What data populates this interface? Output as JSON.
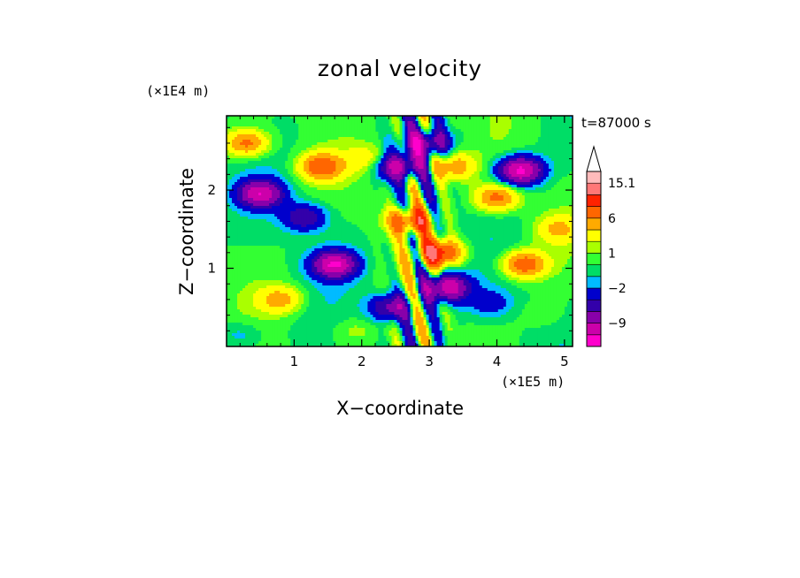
{
  "chart_data": {
    "type": "heatmap",
    "title": "zonal velocity",
    "xlabel": "X−coordinate",
    "ylabel": "Z−coordinate",
    "x_unit": "(×1E5 m)",
    "y_unit": "(×1E4 m)",
    "time_label": "t=87000 s",
    "xlim": [
      0,
      5.12
    ],
    "ylim": [
      0,
      2.95
    ],
    "x_ticks": [
      1,
      2,
      3,
      4,
      5
    ],
    "y_ticks": [
      1,
      2
    ],
    "x_tick_labels": [
      "1",
      "2",
      "3",
      "4",
      "5"
    ],
    "y_tick_labels": [
      "1",
      "2"
    ],
    "grid": false,
    "colorbar": {
      "levels": [
        -15,
        -12,
        -9,
        -6,
        -4,
        -2,
        -1,
        0,
        1,
        2,
        4,
        6,
        9,
        12,
        15.1,
        18
      ],
      "colors": [
        "#ff00cc",
        "#cc00aa",
        "#8800aa",
        "#3300aa",
        "#0000cc",
        "#00bbff",
        "#00dd66",
        "#33ff33",
        "#aaff00",
        "#ffff00",
        "#ffaa00",
        "#ff6600",
        "#ff2200",
        "#ff7777",
        "#ffbbbb"
      ],
      "labeled_values": [
        "15.1",
        "6",
        "1",
        "−2",
        "−9"
      ],
      "extend_max": true
    },
    "features": [
      {
        "x": 0.5,
        "z": 1.95,
        "u": -11
      },
      {
        "x": 1.15,
        "z": 1.65,
        "u": -6
      },
      {
        "x": 1.6,
        "z": 1.05,
        "u": -12
      },
      {
        "x": 0.3,
        "z": 2.6,
        "u": 7
      },
      {
        "x": 1.4,
        "z": 2.3,
        "u": 8
      },
      {
        "x": 0.8,
        "z": 0.6,
        "u": 5
      },
      {
        "x": 0.2,
        "z": 0.15,
        "u": -2
      },
      {
        "x": 2.55,
        "z": 2.3,
        "u": -10
      },
      {
        "x": 2.7,
        "z": 1.6,
        "u": 9
      },
      {
        "x": 2.95,
        "z": 2.6,
        "u": -9
      },
      {
        "x": 3.15,
        "z": 1.2,
        "u": 11
      },
      {
        "x": 3.25,
        "z": 0.75,
        "u": -12
      },
      {
        "x": 2.45,
        "z": 0.5,
        "u": -8
      },
      {
        "x": 3.35,
        "z": 2.3,
        "u": 6
      },
      {
        "x": 4.35,
        "z": 2.25,
        "u": -13
      },
      {
        "x": 4.0,
        "z": 1.9,
        "u": 7
      },
      {
        "x": 4.4,
        "z": 1.05,
        "u": 8
      },
      {
        "x": 3.9,
        "z": 0.55,
        "u": -3
      },
      {
        "x": 4.7,
        "z": 0.4,
        "u": 1
      },
      {
        "x": 4.9,
        "z": 1.5,
        "u": 4
      },
      {
        "x": 2.1,
        "z": 2.4,
        "u": 3
      },
      {
        "x": 1.9,
        "z": 0.2,
        "u": 1.5
      }
    ]
  }
}
